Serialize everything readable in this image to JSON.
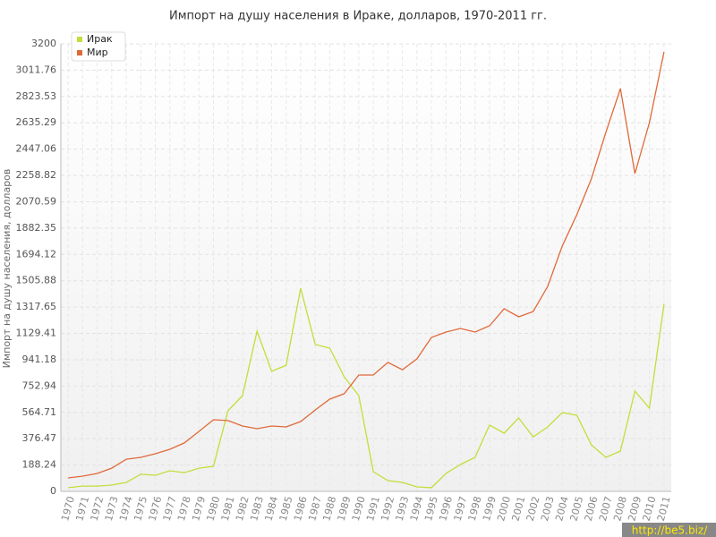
{
  "chart_data": {
    "type": "line",
    "title": "Импорт на душу населения в Ираке, долларов, 1970-2011 гг.",
    "y_label": "Импорт на душу населения, долларов",
    "watermark": "http://be5.biz/",
    "categories": [
      "1970",
      "1971",
      "1972",
      "1973",
      "1974",
      "1975",
      "1976",
      "1977",
      "1978",
      "1979",
      "1980",
      "1981",
      "1982",
      "1983",
      "1984",
      "1985",
      "1986",
      "1987",
      "1988",
      "1989",
      "1990",
      "1991",
      "1992",
      "1993",
      "1994",
      "1995",
      "1996",
      "1997",
      "1998",
      "1999",
      "2000",
      "2001",
      "2002",
      "2003",
      "2004",
      "2005",
      "2006",
      "2007",
      "2008",
      "2009",
      "2010",
      "2011"
    ],
    "series": [
      {
        "name": "Ирак",
        "color": "#c2de3a",
        "values": [
          26,
          38,
          38,
          45,
          64,
          122,
          115,
          147,
          134,
          166,
          179,
          576,
          685,
          1146,
          858,
          902,
          1453,
          1050,
          1024,
          819,
          685,
          141,
          77,
          64,
          32,
          26,
          128,
          192,
          243,
          474,
          416,
          525,
          390,
          461,
          563,
          544,
          333,
          243,
          288,
          717,
          595,
          1338
        ]
      },
      {
        "name": "Мир",
        "color": "#e0693a",
        "values": [
          96,
          109,
          128,
          166,
          230,
          243,
          269,
          301,
          346,
          429,
          512,
          506,
          467,
          448,
          467,
          461,
          499,
          582,
          659,
          698,
          832,
          832,
          922,
          870,
          947,
          1101,
          1139,
          1165,
          1139,
          1184,
          1306,
          1248,
          1286,
          1466,
          1754,
          1978,
          2234,
          2566,
          2880,
          2272,
          2637,
          3142
        ]
      }
    ],
    "ylim": [
      0,
      3200
    ],
    "yticks": [
      0,
      188.24,
      376.47,
      564.71,
      752.94,
      941.18,
      1129.41,
      1317.65,
      1505.88,
      1694.12,
      1882.35,
      2070.59,
      2258.82,
      2447.06,
      2635.29,
      2823.53,
      3011.76,
      3200
    ],
    "grid": true,
    "legend": "top-left"
  }
}
